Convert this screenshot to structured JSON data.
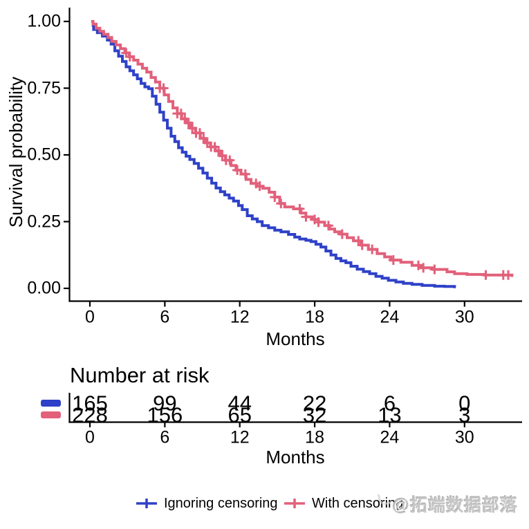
{
  "watermark": {
    "text": "@拓端数据部落"
  },
  "chart_data": {
    "type": "line",
    "subtype": "kaplan-meier-step",
    "title": "",
    "xlabel": "Months",
    "ylabel": "Survival probability",
    "xlim": [
      0,
      34.6
    ],
    "ylim": [
      0,
      1
    ],
    "xticks": [
      0,
      6,
      12,
      18,
      24,
      30
    ],
    "yticks": [
      {
        "value": 0.0,
        "label": "0.00"
      },
      {
        "value": 0.25,
        "label": "0.25"
      },
      {
        "value": 0.5,
        "label": "0.50"
      },
      {
        "value": 0.75,
        "label": "0.75"
      },
      {
        "value": 1.0,
        "label": "1.00"
      }
    ],
    "grid": false,
    "legend_position": "bottom",
    "axis_color": "#000000",
    "series": [
      {
        "name": "Ignoring censoring",
        "color": "#2e41c8",
        "end_time": 29.3,
        "censor_times": [],
        "steps": [
          [
            0.15,
            0.985
          ],
          [
            0.3,
            0.97
          ],
          [
            0.6,
            0.958
          ],
          [
            1.0,
            0.945
          ],
          [
            1.4,
            0.93
          ],
          [
            1.7,
            0.915
          ],
          [
            2.0,
            0.89
          ],
          [
            2.3,
            0.87
          ],
          [
            2.6,
            0.85
          ],
          [
            2.9,
            0.83
          ],
          [
            3.2,
            0.815
          ],
          [
            3.5,
            0.8
          ],
          [
            3.8,
            0.785
          ],
          [
            4.1,
            0.768
          ],
          [
            4.4,
            0.755
          ],
          [
            4.7,
            0.748
          ],
          [
            5.0,
            0.72
          ],
          [
            5.3,
            0.69
          ],
          [
            5.6,
            0.66
          ],
          [
            5.9,
            0.63
          ],
          [
            6.2,
            0.6
          ],
          [
            6.5,
            0.57
          ],
          [
            6.8,
            0.55
          ],
          [
            7.1,
            0.527
          ],
          [
            7.4,
            0.51
          ],
          [
            7.7,
            0.495
          ],
          [
            8.0,
            0.483
          ],
          [
            8.35,
            0.468
          ],
          [
            8.7,
            0.45
          ],
          [
            9.05,
            0.432
          ],
          [
            9.4,
            0.413
          ],
          [
            9.75,
            0.394
          ],
          [
            10.1,
            0.376
          ],
          [
            10.45,
            0.362
          ],
          [
            10.8,
            0.35
          ],
          [
            11.15,
            0.338
          ],
          [
            11.5,
            0.327
          ],
          [
            11.9,
            0.31
          ],
          [
            12.2,
            0.295
          ],
          [
            12.6,
            0.272
          ],
          [
            13.0,
            0.26
          ],
          [
            13.4,
            0.25
          ],
          [
            13.8,
            0.235
          ],
          [
            14.3,
            0.227
          ],
          [
            14.8,
            0.218
          ],
          [
            15.3,
            0.212
          ],
          [
            15.9,
            0.202
          ],
          [
            16.4,
            0.192
          ],
          [
            16.8,
            0.185
          ],
          [
            17.3,
            0.18
          ],
          [
            17.7,
            0.175
          ],
          [
            18.1,
            0.165
          ],
          [
            18.5,
            0.155
          ],
          [
            18.9,
            0.14
          ],
          [
            19.3,
            0.125
          ],
          [
            19.7,
            0.112
          ],
          [
            20.1,
            0.103
          ],
          [
            20.5,
            0.096
          ],
          [
            20.9,
            0.083
          ],
          [
            21.4,
            0.072
          ],
          [
            21.9,
            0.063
          ],
          [
            22.4,
            0.055
          ],
          [
            22.9,
            0.045
          ],
          [
            23.4,
            0.038
          ],
          [
            23.9,
            0.03
          ],
          [
            24.5,
            0.024
          ],
          [
            25.1,
            0.019
          ],
          [
            25.8,
            0.015
          ],
          [
            26.6,
            0.011
          ],
          [
            27.6,
            0.008
          ],
          [
            28.4,
            0.007
          ],
          [
            29.2,
            0.006
          ]
        ]
      },
      {
        "name": "With censoring",
        "color": "#e2607a",
        "end_time": 33.9,
        "censor_times": [
          2.9,
          3.2,
          5.6,
          5.9,
          7.0,
          7.3,
          7.6,
          7.9,
          8.2,
          8.5,
          8.8,
          9.1,
          9.4,
          9.7,
          10.0,
          10.3,
          10.6,
          10.9,
          11.2,
          11.8,
          12.45,
          13.3,
          13.6,
          14.8,
          15.3,
          16.8,
          17.3,
          18.0,
          18.3,
          19.1,
          20.2,
          21.5,
          21.8,
          22.6,
          24.3,
          26.3,
          26.7,
          27.6,
          31.7,
          33.1,
          33.5
        ],
        "steps": [
          [
            0.1,
            1.0
          ],
          [
            0.25,
            0.99
          ],
          [
            0.5,
            0.975
          ],
          [
            0.8,
            0.963
          ],
          [
            1.1,
            0.952
          ],
          [
            1.45,
            0.94
          ],
          [
            1.75,
            0.925
          ],
          [
            2.1,
            0.912
          ],
          [
            2.45,
            0.898
          ],
          [
            2.8,
            0.882
          ],
          [
            3.15,
            0.868
          ],
          [
            3.5,
            0.855
          ],
          [
            3.85,
            0.84
          ],
          [
            4.2,
            0.825
          ],
          [
            4.55,
            0.81
          ],
          [
            4.9,
            0.79
          ],
          [
            5.25,
            0.773
          ],
          [
            5.6,
            0.75
          ],
          [
            5.95,
            0.725
          ],
          [
            6.3,
            0.7
          ],
          [
            6.65,
            0.676
          ],
          [
            7.0,
            0.655
          ],
          [
            7.35,
            0.635
          ],
          [
            7.7,
            0.62
          ],
          [
            8.05,
            0.6
          ],
          [
            8.45,
            0.582
          ],
          [
            8.85,
            0.562
          ],
          [
            9.25,
            0.545
          ],
          [
            9.65,
            0.53
          ],
          [
            10.05,
            0.515
          ],
          [
            10.45,
            0.497
          ],
          [
            10.85,
            0.48
          ],
          [
            11.3,
            0.46
          ],
          [
            11.7,
            0.443
          ],
          [
            12.1,
            0.428
          ],
          [
            12.5,
            0.408
          ],
          [
            12.9,
            0.393
          ],
          [
            13.35,
            0.383
          ],
          [
            13.85,
            0.375
          ],
          [
            14.35,
            0.36
          ],
          [
            14.8,
            0.342
          ],
          [
            15.2,
            0.318
          ],
          [
            15.6,
            0.305
          ],
          [
            16.3,
            0.298
          ],
          [
            16.9,
            0.282
          ],
          [
            17.3,
            0.268
          ],
          [
            17.8,
            0.258
          ],
          [
            18.3,
            0.248
          ],
          [
            18.8,
            0.235
          ],
          [
            19.2,
            0.222
          ],
          [
            19.6,
            0.212
          ],
          [
            20.1,
            0.203
          ],
          [
            20.6,
            0.19
          ],
          [
            21.1,
            0.178
          ],
          [
            21.7,
            0.162
          ],
          [
            22.3,
            0.146
          ],
          [
            23.0,
            0.13
          ],
          [
            23.6,
            0.118
          ],
          [
            24.1,
            0.106
          ],
          [
            24.9,
            0.098
          ],
          [
            25.8,
            0.086
          ],
          [
            26.5,
            0.077
          ],
          [
            27.5,
            0.071
          ],
          [
            28.6,
            0.062
          ],
          [
            29.2,
            0.055
          ],
          [
            30.2,
            0.052
          ],
          [
            31.6,
            0.05
          ],
          [
            33.8,
            0.048
          ]
        ]
      }
    ],
    "risk_table": {
      "title": "Number at risk",
      "xlabel": "Months",
      "times": [
        0,
        6,
        12,
        18,
        24,
        30
      ],
      "rows": [
        {
          "name": "Ignoring censoring",
          "color": "#2e41c8",
          "values": [
            165,
            99,
            44,
            22,
            6,
            0
          ]
        },
        {
          "name": "With censoring",
          "color": "#e2607a",
          "values": [
            228,
            156,
            65,
            32,
            13,
            3
          ]
        }
      ]
    }
  }
}
